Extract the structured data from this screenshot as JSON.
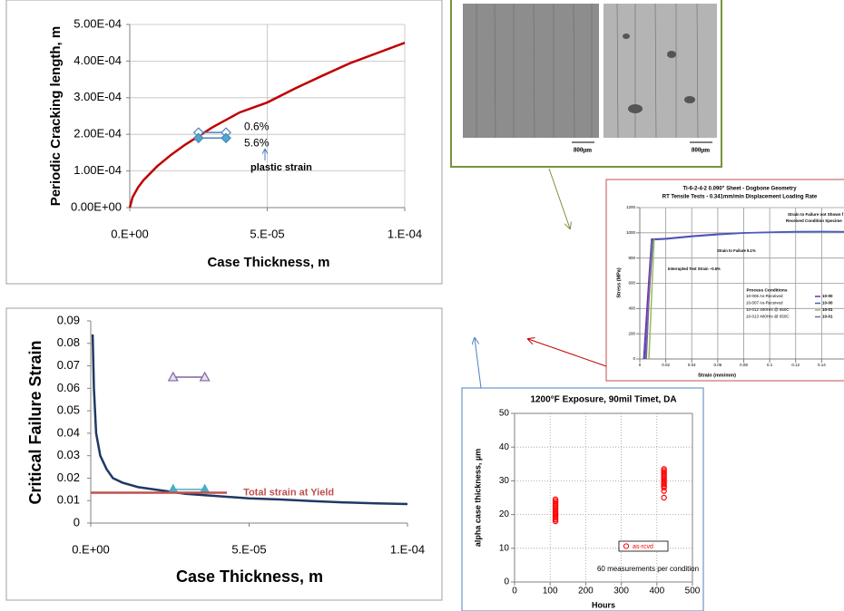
{
  "chart_data": [
    {
      "type": "line",
      "ylabel": "Periodic Cracking length, m",
      "xlabel": "Case Thickness, m",
      "xlim": [
        0,
        0.0001
      ],
      "ylim": [
        0,
        0.0005
      ],
      "xticks": [
        {
          "value": 0,
          "label": "0.E+00"
        },
        {
          "value": 5e-05,
          "label": "5.E-05"
        },
        {
          "value": 0.0001,
          "label": "1.E-04"
        }
      ],
      "yticks": [
        {
          "value": 0,
          "label": "0.00E+00"
        },
        {
          "value": 0.0001,
          "label": "1.00E-04"
        },
        {
          "value": 0.0002,
          "label": "2.00E-04"
        },
        {
          "value": 0.0003,
          "label": "3.00E-04"
        },
        {
          "value": 0.0004,
          "label": "4.00E-04"
        },
        {
          "value": 0.0005,
          "label": "5.00E-04"
        }
      ],
      "grid": true,
      "series": [
        {
          "color": "#c00000",
          "x": [
            0,
            1e-06,
            3e-06,
            5e-06,
            1e-05,
            1.5e-05,
            2e-05,
            3e-05,
            4e-05,
            5e-05,
            6e-05,
            7e-05,
            8e-05,
            9e-05,
            0.0001
          ],
          "values": [
            0,
            2.8e-05,
            5.5e-05,
            7.5e-05,
            0.000113,
            0.000144,
            0.000171,
            0.000219,
            0.00026,
            0.000287,
            0.000325,
            0.00036,
            0.000394,
            0.000422,
            0.00045
          ]
        },
        {
          "name": "0.6%",
          "color": "#4f81bd",
          "marker": "diamond",
          "marker_fill": "#ffffff",
          "x": [
            2.5e-05,
            3.5e-05
          ],
          "values": [
            0.000205,
            0.000205
          ]
        },
        {
          "name": "5.6%",
          "color": "#4f81bd",
          "marker": "diamond",
          "marker_fill": "#4bacc6",
          "x": [
            2.5e-05,
            3.5e-05
          ],
          "values": [
            0.00019,
            0.00019
          ]
        }
      ],
      "annotations": [
        "plastic strain"
      ]
    },
    {
      "type": "line",
      "ylabel": "Critical Failure Strain",
      "xlabel": "Case Thickness, m",
      "xlim": [
        0,
        0.0001
      ],
      "ylim": [
        0,
        0.09
      ],
      "xticks": [
        {
          "value": 0,
          "label": "0.E+00"
        },
        {
          "value": 5e-05,
          "label": "5.E-05"
        },
        {
          "value": 0.0001,
          "label": "1.E-04"
        }
      ],
      "yticks": [
        0,
        0.01,
        0.02,
        0.03,
        0.04,
        0.05,
        0.06,
        0.07,
        0.08,
        0.09
      ],
      "grid": false,
      "series": [
        {
          "color": "#1f3864",
          "x": [
            6e-07,
            1e-06,
            1.7e-06,
            3e-06,
            5e-06,
            7e-06,
            1e-05,
            1.5e-05,
            2e-05,
            3e-05,
            4e-05,
            5e-05,
            6e-05,
            7e-05,
            8e-05,
            9e-05,
            0.0001
          ],
          "values": [
            0.084,
            0.06,
            0.04,
            0.03,
            0.024,
            0.02,
            0.018,
            0.016,
            0.015,
            0.013,
            0.012,
            0.011,
            0.0105,
            0.0098,
            0.0092,
            0.0088,
            0.0085
          ]
        },
        {
          "color": "#8064a2",
          "marker": "triangle",
          "marker_fill": "#e6e0ec",
          "x": [
            2.6e-05,
            3.6e-05
          ],
          "values": [
            0.065,
            0.065
          ]
        },
        {
          "color": "#4bacc6",
          "marker": "triangle",
          "marker_fill": "#4bacc6",
          "x": [
            2.6e-05,
            3.6e-05
          ],
          "values": [
            0.015,
            0.015
          ]
        },
        {
          "name": "Total strain at Yield",
          "color": "#c0504d",
          "x": [
            0,
            4.3e-05
          ],
          "values": [
            0.0135,
            0.0135
          ]
        }
      ]
    },
    {
      "type": "line",
      "title": "Ti-6-2-4-2   0.090\" Sheet - Dogbone Geometry",
      "subtitle": "RT Tensile Tests - 0.341mm/min Displacement Loading Rate",
      "ylabel": "Stress (MPa)",
      "xlabel": "Strain (mm/mm)",
      "xlim": [
        0,
        0.16
      ],
      "ylim": [
        0,
        1200
      ],
      "xticks": [
        0,
        0.02,
        0.04,
        0.06,
        0.08,
        0.1,
        0.12,
        0.14
      ],
      "yticks": [
        0,
        200,
        400,
        600,
        800,
        1000,
        1200
      ],
      "grid": true,
      "legend_title": "Process Conditions",
      "legend_keys": [
        "10-00",
        "10-00",
        "10-01",
        "10-01"
      ],
      "series": [
        {
          "name": "10-006  As-Received",
          "color": "#7030a0",
          "x": [
            0.003,
            0.009,
            0.02,
            0.04,
            0.06,
            0.08,
            0.1,
            0.12,
            0.14,
            0.16
          ],
          "values": [
            0,
            950,
            955,
            975,
            990,
            1000,
            1005,
            1010,
            1010,
            1008
          ]
        },
        {
          "name": "10-007  As-Received",
          "color": "#4060c0",
          "x": [
            0.004,
            0.01,
            0.02,
            0.04,
            0.06,
            0.08,
            0.1,
            0.12,
            0.14,
            0.16
          ],
          "values": [
            0,
            945,
            950,
            970,
            985,
            998,
            1003,
            1008,
            1010,
            1008
          ]
        },
        {
          "name": "10-012  400Hrs @ 650C",
          "color": "#9bbb59",
          "x": [
            0.007,
            0.011
          ],
          "values": [
            0,
            950
          ]
        },
        {
          "name": "10-013  400Hrs @ 650C",
          "color": "#8064a2",
          "x": [
            0.005,
            0.009
          ],
          "values": [
            0,
            940
          ]
        }
      ],
      "annotations": [
        "Strain to Failure not Shown f",
        "Received Condition Specime",
        "Strain to Failure 5.1%",
        "Interrupted Test Strain ~0.6%"
      ]
    },
    {
      "type": "scatter",
      "title": "1200°F Exposure, 90mil Timet, DA",
      "ylabel": "alpha case thickness, µm",
      "xlabel": "Hours",
      "xlim": [
        0,
        500
      ],
      "ylim": [
        0,
        50
      ],
      "xticks": [
        0,
        100,
        200,
        300,
        400,
        500
      ],
      "yticks": [
        0,
        10,
        20,
        30,
        40,
        50
      ],
      "grid": true,
      "series": [
        {
          "name": "as-rcvd",
          "color": "#ff0000",
          "x": [
            115,
            115,
            115,
            115,
            115,
            115,
            115,
            115,
            115,
            115,
            115,
            115,
            115,
            115,
            420,
            420,
            420,
            420,
            420,
            420,
            420,
            420,
            420,
            420,
            420,
            420,
            420,
            420
          ],
          "values": [
            18,
            18.5,
            19,
            19.5,
            20,
            20.5,
            21,
            21.5,
            22,
            22.5,
            23,
            23.5,
            24,
            24.5,
            25,
            27,
            28,
            28.5,
            29,
            29.5,
            30,
            30.5,
            31,
            31.5,
            32,
            32.5,
            33,
            33.5
          ]
        }
      ],
      "annotations": [
        "60 measurements per condition"
      ]
    }
  ],
  "images": [
    {
      "scale_label": "800μm"
    },
    {
      "scale_label": "800μm"
    }
  ]
}
